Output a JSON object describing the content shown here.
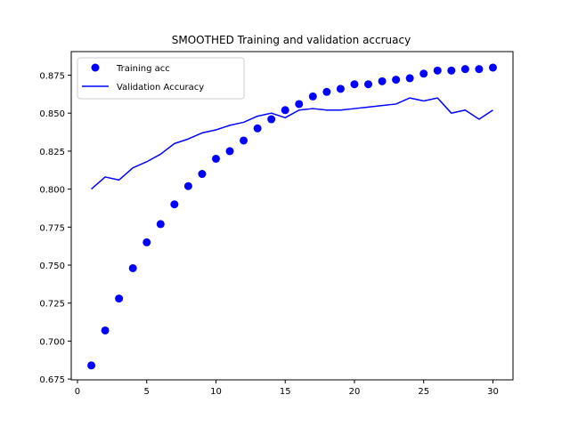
{
  "chart_data": {
    "type": "line",
    "title": "SMOOTHED Training and validation accruacy",
    "xlabel": "",
    "ylabel": "",
    "xlim": [
      -0.45,
      31.45
    ],
    "ylim": [
      0.6745,
      0.8905
    ],
    "x_ticks": [
      0,
      5,
      10,
      15,
      20,
      25,
      30
    ],
    "y_ticks": [
      0.675,
      0.7,
      0.725,
      0.75,
      0.775,
      0.8,
      0.825,
      0.85,
      0.875
    ],
    "y_tick_labels": [
      "0.675",
      "0.700",
      "0.725",
      "0.750",
      "0.775",
      "0.800",
      "0.825",
      "0.850",
      "0.875"
    ],
    "grid": false,
    "legend": "upper-left",
    "color": "#0000ff",
    "series": [
      {
        "name": "Training acc",
        "style": "markers",
        "x": [
          1,
          2,
          3,
          4,
          5,
          6,
          7,
          8,
          9,
          10,
          11,
          12,
          13,
          14,
          15,
          16,
          17,
          18,
          19,
          20,
          21,
          22,
          23,
          24,
          25,
          26,
          27,
          28,
          29,
          30
        ],
        "values": [
          0.684,
          0.707,
          0.728,
          0.748,
          0.765,
          0.777,
          0.79,
          0.802,
          0.81,
          0.82,
          0.825,
          0.832,
          0.84,
          0.846,
          0.852,
          0.856,
          0.861,
          0.864,
          0.866,
          0.869,
          0.869,
          0.871,
          0.872,
          0.873,
          0.876,
          0.878,
          0.878,
          0.879,
          0.879,
          0.88
        ]
      },
      {
        "name": "Validation Accuracy",
        "style": "line",
        "x": [
          1,
          2,
          3,
          4,
          5,
          6,
          7,
          8,
          9,
          10,
          11,
          12,
          13,
          14,
          15,
          16,
          17,
          18,
          19,
          20,
          21,
          22,
          23,
          24,
          25,
          26,
          27,
          28,
          29,
          30
        ],
        "values": [
          0.8,
          0.808,
          0.806,
          0.814,
          0.818,
          0.823,
          0.83,
          0.833,
          0.837,
          0.839,
          0.842,
          0.844,
          0.848,
          0.85,
          0.847,
          0.852,
          0.853,
          0.852,
          0.852,
          0.853,
          0.854,
          0.855,
          0.856,
          0.86,
          0.858,
          0.86,
          0.85,
          0.852,
          0.846,
          0.852
        ]
      }
    ]
  }
}
